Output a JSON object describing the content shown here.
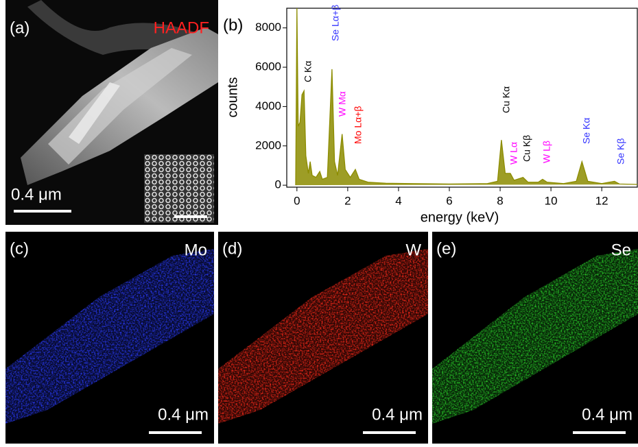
{
  "panels": {
    "a": {
      "label": "(a)",
      "tag": "HAADF",
      "scale": "0.4 μm"
    },
    "c": {
      "label": "(c)",
      "tag": "Mo",
      "scale": "0.4 μm"
    },
    "d": {
      "label": "(d)",
      "tag": "W",
      "scale": "0.4 μm"
    },
    "e": {
      "label": "(e)",
      "tag": "Se",
      "scale": "0.4 μm"
    }
  },
  "chart_data": {
    "type": "line",
    "panel_label": "(b)",
    "xlabel": "energy (keV)",
    "ylabel": "counts",
    "color": "#8c8c00",
    "xlim": [
      -0.4,
      13.4
    ],
    "xticks": [
      0,
      2,
      4,
      6,
      8,
      10,
      12
    ],
    "ylim": [
      -100,
      9000
    ],
    "yticks": [
      0,
      2000,
      4000,
      6000,
      8000
    ],
    "x": [
      -0.05,
      0,
      0.05,
      0.12,
      0.2,
      0.28,
      0.35,
      0.45,
      0.52,
      0.6,
      0.75,
      0.9,
      1.0,
      1.2,
      1.38,
      1.48,
      1.6,
      1.78,
      1.9,
      2.1,
      2.3,
      2.45,
      2.8,
      3.5,
      4.5,
      6,
      7.5,
      7.9,
      8.05,
      8.2,
      8.4,
      8.55,
      8.9,
      9.1,
      9.5,
      9.67,
      9.85,
      10.5,
      11.0,
      11.22,
      11.45,
      12.0,
      12.5,
      12.7,
      13.4
    ],
    "values": [
      0,
      9000,
      3000,
      3200,
      4600,
      4800,
      1500,
      600,
      1200,
      500,
      400,
      700,
      300,
      400,
      5900,
      1200,
      500,
      2600,
      800,
      400,
      800,
      300,
      150,
      100,
      80,
      60,
      80,
      200,
      2300,
      600,
      600,
      250,
      400,
      150,
      150,
      300,
      150,
      80,
      200,
      1200,
      200,
      80,
      200,
      60,
      40
    ],
    "annotations": [
      {
        "text": "C Kα",
        "color": "#000000"
      },
      {
        "text": "Se Lα+β",
        "color": "#3333ff"
      },
      {
        "text": "W Mα",
        "color": "#ff00ff"
      },
      {
        "text": "Mo Lα+β",
        "color": "#ff0000"
      },
      {
        "text": "Cu Kα",
        "color": "#000000"
      },
      {
        "text": "W Lα",
        "color": "#ff00ff"
      },
      {
        "text": "Cu Kβ",
        "color": "#000000"
      },
      {
        "text": "W Lβ",
        "color": "#ff00ff"
      },
      {
        "text": "Se Kα",
        "color": "#3333ff"
      },
      {
        "text": "Se Kβ",
        "color": "#3333ff"
      }
    ]
  }
}
